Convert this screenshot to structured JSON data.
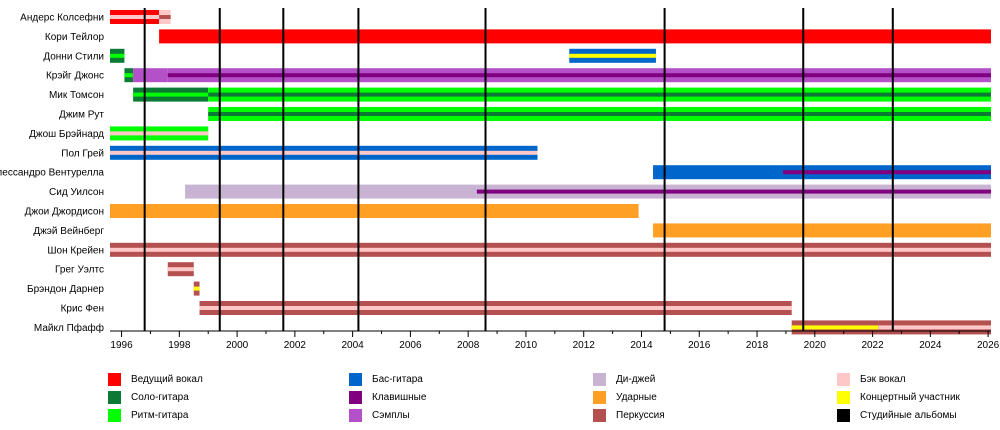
{
  "chart_data": {
    "type": "timeline",
    "xlim": [
      1995.6,
      2026.1
    ],
    "x_ticks": [
      1996,
      1998,
      2000,
      2002,
      2004,
      2006,
      2008,
      2010,
      2012,
      2014,
      2016,
      2018,
      2020,
      2022,
      2024,
      2026
    ],
    "tick_labels": [
      "1996",
      "1998",
      "2000",
      "2002",
      "2004",
      "2006",
      "2008",
      "2010",
      "2012",
      "2014",
      "2016",
      "2018",
      "2020",
      "2022",
      "2024",
      "2026"
    ],
    "roles": {
      "vocals": {
        "label": "Ведущий вокал",
        "color": "#ff0000"
      },
      "lead": {
        "label": "Соло-гитара",
        "color": "#0c7a34"
      },
      "rhythm": {
        "label": "Ритм-гитара",
        "color": "#00ff00"
      },
      "bass": {
        "label": "Бас-гитара",
        "color": "#0066cc"
      },
      "keys": {
        "label": "Клавишные",
        "color": "#800080"
      },
      "samples": {
        "label": "Сэмплы",
        "color": "#b450c8"
      },
      "dj": {
        "label": "Ди-джей",
        "color": "#c8b4d2"
      },
      "drums": {
        "label": "Ударные",
        "color": "#ffa024"
      },
      "percussion": {
        "label": "Перкуссия",
        "color": "#b4504f"
      },
      "backing": {
        "label": "Бэк вокал",
        "color": "#ffc8c8"
      },
      "touring": {
        "label": "Концертный участник",
        "color": "#ffff00"
      },
      "albums": {
        "label": "Студийные альбомы",
        "color": "#000000"
      }
    },
    "legend_columns": [
      [
        "vocals",
        "lead",
        "rhythm"
      ],
      [
        "bass",
        "keys",
        "samples"
      ],
      [
        "dj",
        "drums",
        "percussion"
      ],
      [
        "backing",
        "touring",
        "albums"
      ]
    ],
    "album_years": [
      1996.8,
      1999.4,
      2001.6,
      2004.2,
      2008.6,
      2014.8,
      2019.6,
      2022.7
    ],
    "members": [
      {
        "name": "Андерс Колсефни",
        "segments": [
          {
            "start": 1995.6,
            "end": 1997.3,
            "role": "vocals",
            "stripe": "backing"
          },
          {
            "start": 1997.3,
            "end": 1997.7,
            "role": "backing",
            "stripe": "percussion"
          }
        ]
      },
      {
        "name": "Кори Тейлор",
        "segments": [
          {
            "start": 1997.3,
            "end": 2026.1,
            "role": "vocals"
          }
        ]
      },
      {
        "name": "Донни Стили",
        "segments": [
          {
            "start": 1995.6,
            "end": 1996.1,
            "role": "lead",
            "stripe": "rhythm"
          },
          {
            "start": 2011.5,
            "end": 2014.5,
            "role": "bass",
            "stripe": "touring"
          }
        ]
      },
      {
        "name": "Крэйг Джонс",
        "segments": [
          {
            "start": 1996.1,
            "end": 1996.4,
            "role": "lead",
            "stripe": "rhythm"
          },
          {
            "start": 1996.4,
            "end": 1997.6,
            "role": "samples"
          },
          {
            "start": 1997.6,
            "end": 2026.1,
            "role": "samples",
            "stripe": "keys"
          }
        ]
      },
      {
        "name": "Мик Томсон",
        "segments": [
          {
            "start": 1996.4,
            "end": 1999.0,
            "role": "lead",
            "stripe": "rhythm"
          },
          {
            "start": 1999.0,
            "end": 2026.1,
            "role": "rhythm",
            "stripe": "lead"
          }
        ]
      },
      {
        "name": "Джим Рут",
        "segments": [
          {
            "start": 1999.0,
            "end": 2026.1,
            "role": "rhythm",
            "stripe": "lead"
          }
        ]
      },
      {
        "name": "Джош Брэйнард",
        "segments": [
          {
            "start": 1995.6,
            "end": 1999.0,
            "role": "rhythm",
            "stripe": "backing"
          }
        ]
      },
      {
        "name": "Пол Грей",
        "segments": [
          {
            "start": 1995.6,
            "end": 2010.4,
            "role": "bass",
            "stripe": "backing"
          }
        ]
      },
      {
        "name": "Алессандро Вентурелла",
        "segments": [
          {
            "start": 2014.4,
            "end": 2018.9,
            "role": "bass"
          },
          {
            "start": 2018.9,
            "end": 2026.1,
            "role": "bass",
            "stripe": "keys"
          }
        ]
      },
      {
        "name": "Сид Уилсон",
        "segments": [
          {
            "start": 1998.2,
            "end": 2008.3,
            "role": "dj"
          },
          {
            "start": 2008.3,
            "end": 2026.1,
            "role": "dj",
            "stripe": "keys"
          }
        ]
      },
      {
        "name": "Джои Джордисон",
        "segments": [
          {
            "start": 1995.6,
            "end": 2013.9,
            "role": "drums"
          }
        ]
      },
      {
        "name": "Джэй Вейнберг",
        "segments": [
          {
            "start": 2014.4,
            "end": 2026.1,
            "role": "drums"
          }
        ]
      },
      {
        "name": "Шон Крейен",
        "segments": [
          {
            "start": 1995.6,
            "end": 2026.1,
            "role": "percussion",
            "stripe": "backing"
          }
        ]
      },
      {
        "name": "Грег Уэлтс",
        "segments": [
          {
            "start": 1997.6,
            "end": 1998.5,
            "role": "percussion",
            "stripe": "backing"
          }
        ]
      },
      {
        "name": "Брэндон Дарнер",
        "segments": [
          {
            "start": 1998.5,
            "end": 1998.7,
            "role": "percussion",
            "stripe": "touring"
          }
        ]
      },
      {
        "name": "Крис Фен",
        "segments": [
          {
            "start": 1998.7,
            "end": 2019.2,
            "role": "percussion",
            "stripe": "backing"
          }
        ]
      },
      {
        "name": "Майкл Пфафф",
        "segments": [
          {
            "start": 2019.2,
            "end": 2022.2,
            "role": "percussion",
            "stripe": "touring"
          },
          {
            "start": 2022.2,
            "end": 2026.1,
            "role": "percussion",
            "stripe": "backing"
          }
        ]
      }
    ]
  }
}
